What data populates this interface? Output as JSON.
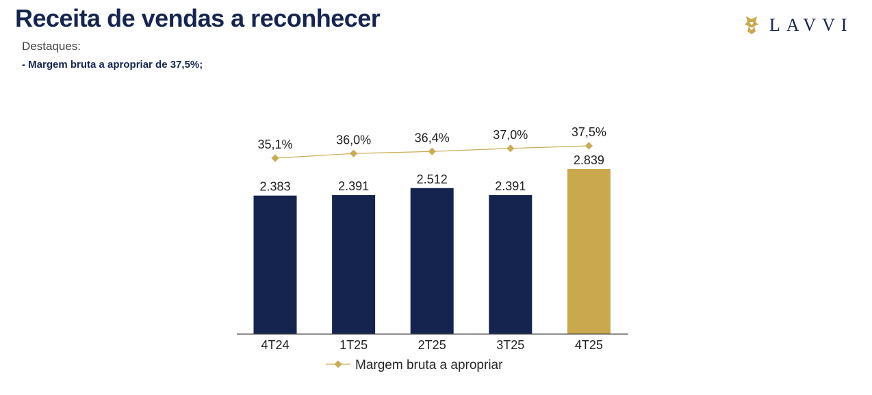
{
  "header": {
    "title": "Receita de vendas a reconhecer",
    "subtitle": "Destaques:",
    "highlight": "- Margem bruta a apropriar de 37,5%;"
  },
  "logo": {
    "text": "LAVVI",
    "icon": "lion-mark-icon"
  },
  "colors": {
    "navy": "#14244f",
    "gold": "#c9a84e",
    "line": "#c9ac55"
  },
  "chart_data": {
    "type": "bar",
    "categories": [
      "4T24",
      "1T25",
      "2T25",
      "3T25",
      "4T25"
    ],
    "series": [
      {
        "name": "Receita de vendas a reconhecer",
        "type": "bar",
        "values": [
          2383,
          2391,
          2512,
          2391,
          2839
        ],
        "labels": [
          "2.383",
          "2.391",
          "2.512",
          "2.391",
          "2.839"
        ],
        "highlight_index": 4
      },
      {
        "name": "Margem bruta a apropriar",
        "type": "line",
        "values": [
          35.1,
          36.0,
          36.4,
          37.0,
          37.5
        ],
        "labels": [
          "35,1%",
          "36,0%",
          "36,4%",
          "37,0%",
          "37,5%"
        ]
      }
    ],
    "legend": [
      "Margem bruta a apropriar"
    ],
    "legend_position": "bottom",
    "ylim_bar": [
      0,
      2839
    ],
    "ylim_line": [
      20,
      40
    ],
    "grid": false
  }
}
